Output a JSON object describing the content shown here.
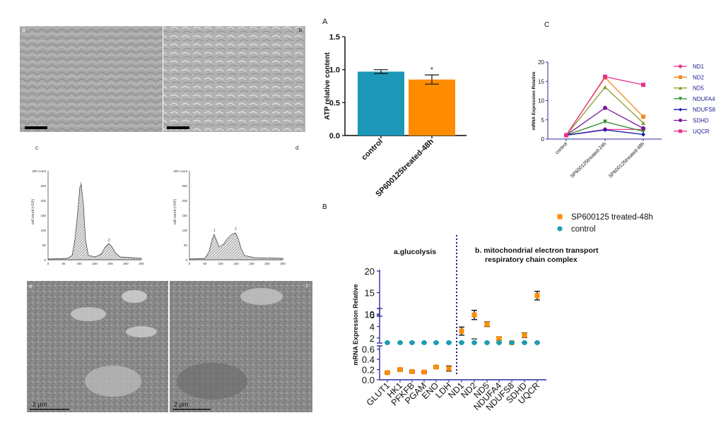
{
  "photo_panels": [
    {
      "letter": "a",
      "kind": "phase-contrast micrograph, dense cells"
    },
    {
      "letter": "b",
      "kind": "phase-contrast micrograph, sparse elongated cells"
    },
    {
      "letter": "e",
      "kind": "electron micrograph",
      "scalebar": "2 μm"
    },
    {
      "letter": "f",
      "kind": "electron micrograph",
      "scalebar": "2 μm"
    }
  ],
  "flow_panels": [
    {
      "letter": "c",
      "ylabel": "cell count (×10³)",
      "yticks": [
        "0",
        "50",
        "100",
        "150",
        "200",
        "250",
        "300 count"
      ],
      "xticks": [
        "0",
        "50",
        "100",
        "150",
        "200",
        "250",
        "300"
      ],
      "peaks": [
        "1",
        "2"
      ]
    },
    {
      "letter": "d",
      "ylabel": "cell count (×10³)",
      "yticks": [
        "0",
        "50",
        "100",
        "150",
        "200",
        "250",
        "300 count"
      ],
      "xticks": [
        "0",
        "50",
        "100",
        "150",
        "200",
        "250",
        "300"
      ],
      "peaks": [
        "1",
        "2"
      ]
    }
  ],
  "colors": {
    "orange": "#ff8c00",
    "teal": "#1a9fb4",
    "bar_blue": "#1c97b8",
    "navy": "#1a1a8c"
  },
  "chart_data": [
    {
      "panel": "A",
      "type": "bar",
      "categories": [
        "control",
        "SP600125treated-48h"
      ],
      "values": [
        0.97,
        0.85
      ],
      "errors": [
        0.03,
        0.07
      ],
      "colors": [
        "#1c97b8",
        "#ff8c00"
      ],
      "significance": [
        "",
        "*"
      ],
      "ylabel": "ATP relative content",
      "ylim": [
        0,
        1.5
      ],
      "yticks": [
        "0.0",
        "0.5",
        "1.0",
        "1.5"
      ]
    },
    {
      "panel": "C",
      "type": "line",
      "categories": [
        "control",
        "SP600125treated-24h",
        "SP600125treated-48h"
      ],
      "ylabel": "mRNA Expression Relative",
      "ylim": [
        0,
        20
      ],
      "yticks": [
        "0",
        "5",
        "10",
        "15",
        "20"
      ],
      "legend_position": "right",
      "series": [
        {
          "name": "ND1",
          "color": "#e8338a",
          "marker": "circle",
          "values": [
            1,
            2.5,
            2.5
          ]
        },
        {
          "name": "ND2",
          "color": "#f08a1c",
          "marker": "square",
          "values": [
            1,
            16,
            5.8
          ]
        },
        {
          "name": "ND5",
          "color": "#8a9a2a",
          "marker": "triangle",
          "values": [
            1,
            13.5,
            4.2
          ]
        },
        {
          "name": "NDUFA4",
          "color": "#2f8a2f",
          "marker": "triangle-down",
          "values": [
            1,
            4.5,
            2
          ]
        },
        {
          "name": "NDUFS8",
          "color": "#1a1ab0",
          "marker": "diamond",
          "values": [
            1,
            2.4,
            1.2
          ]
        },
        {
          "name": "SDHD",
          "color": "#7a1a9a",
          "marker": "circle",
          "values": [
            1,
            8.1,
            2.8
          ]
        },
        {
          "name": "UQCR",
          "color": "#e8338a",
          "marker": "square",
          "values": [
            1,
            16.2,
            14.1
          ]
        }
      ]
    },
    {
      "panel": "B",
      "type": "scatter",
      "categories": [
        "GLUT1",
        "HK1",
        "PFKFB",
        "PGAM",
        "ENO",
        "LDH",
        "ND1",
        "ND2",
        "ND5",
        "NDUFA4",
        "NDUFS8",
        "SDHD",
        "UQCR"
      ],
      "ylabel": "mRNA Expression Relative",
      "yticks_top": [
        "10",
        "15",
        "20"
      ],
      "yticks_mid": [
        "2",
        "4",
        "6"
      ],
      "yticks_bot": [
        "0.0",
        "0.2",
        "0.4",
        "0.6"
      ],
      "group_labels": [
        "a.glucolysis",
        "b. mitochondrial electron transport",
        "respiratory chain complex"
      ],
      "legend_position": "top-right",
      "series": [
        {
          "name": "SP600125 treated-48h",
          "color": "#ff8c00",
          "marker": "square",
          "values": [
            0.14,
            0.2,
            0.16,
            0.15,
            0.25,
            0.22,
            3.2,
            6.0,
            4.4,
            1.9,
            1.2,
            2.5,
            14.3
          ],
          "errors": [
            0.02,
            0.015,
            0.02,
            0.015,
            0.02,
            0.05,
            0.7,
            0.8,
            0.4,
            0.3,
            0.2,
            0.4,
            1.0
          ]
        },
        {
          "name": "control",
          "color": "#1a9fb4",
          "marker": "circle",
          "values": [
            1,
            1,
            1,
            1,
            1,
            1,
            1,
            1,
            1,
            1,
            1,
            1,
            1
          ],
          "errors": [
            0,
            0,
            0,
            0,
            0,
            0,
            0.1,
            0.2,
            0,
            0,
            0,
            0,
            0
          ]
        }
      ]
    }
  ]
}
